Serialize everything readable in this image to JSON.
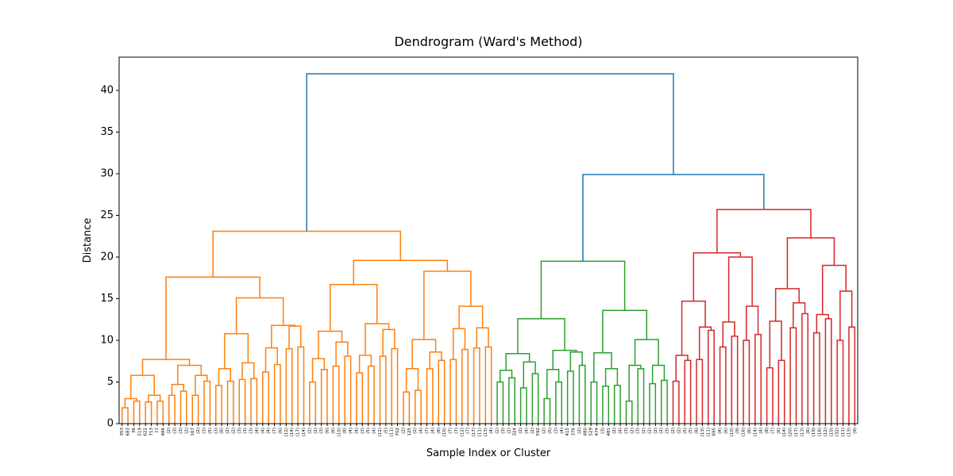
{
  "chart_data": {
    "type": "dendrogram",
    "title": "Dendrogram (Ward's Method)",
    "x_label": "Sample Index or Cluster",
    "y_label": "Distance",
    "ylim": [
      0,
      44
    ],
    "yticks": [
      0,
      5,
      10,
      15,
      20,
      25,
      30,
      35,
      40
    ],
    "color_threshold": 29.4,
    "palette": [
      "#ff7f0e",
      "#2ca02c",
      "#d62728"
    ],
    "above_threshold_color": "#1f77b4",
    "tree": [
      42.0,
      [
        23.1,
        [
          17.6,
          [
            7.7,
            [
              5.8,
              [
                3.0,
                [
                  1.9,
                  "353",
                  "683"
                ],
                [
                  2.7,
                  "36",
                  "519"
                ]
              ],
              [
                3.4,
                [
                  2.6,
                  "622",
                  "713"
                ],
                [
                  2.7,
                  "77",
                  "486"
                ]
              ]
            ],
            [
              7.0,
              [
                4.7,
                [
                  3.4,
                  "(2)",
                  "(3)"
                ],
                [
                  3.9,
                  "(3)",
                  "(2)"
                ]
              ],
              [
                5.8,
                [
                  3.4,
                  "167",
                  "(2)"
                ],
                [
                  5.1,
                  "(3)",
                  "(5)"
                ]
              ]
            ]
          ],
          [
            15.1,
            [
              10.8,
              [
                6.6,
                [
                  4.6,
                  "(3)",
                  "(6)"
                ],
                [
                  5.1,
                  "(2)",
                  "(2)"
                ]
              ],
              [
                7.3,
                [
                  5.3,
                  "(3)",
                  "(3)"
                ],
                [
                  5.4,
                  "(3)",
                  "(4)"
                ]
              ]
            ],
            [
              11.8,
              [
                9.1,
                [
                  6.2,
                  "(4)",
                  "(4)"
                ],
                [
                  7.1,
                  "(7)",
                  "(6)"
                ]
              ],
              [
                11.7,
                [
                  9.0,
                  "(12)",
                  "(14)"
                ],
                [
                  9.2,
                  "(17)",
                  "(14)"
                ]
              ]
            ]
          ]
        ],
        [
          19.6,
          [
            16.7,
            [
              11.1,
              [
                7.8,
                [
                  5.0,
                  "(2)",
                  "(2)"
                ],
                [
                  6.5,
                  "(3)",
                  "(6)"
                ]
              ],
              [
                9.8,
                [
                  6.9,
                  "(6)",
                  "(10)"
                ],
                [
                  8.1,
                  "(8)",
                  "(4)"
                ]
              ]
            ],
            [
              12.0,
              [
                8.2,
                [
                  6.1,
                  "(4)",
                  "(3)"
                ],
                [
                  6.9,
                  "(5)",
                  "(4)"
                ]
              ],
              [
                11.3,
                [
                  8.1,
                  "(12)",
                  "(5)"
                ],
                [
                  9.0,
                  "(11)",
                  "702"
                ]
              ]
            ]
          ],
          [
            18.3,
            [
              10.1,
              [
                6.6,
                [
                  3.8,
                  "(2)",
                  "125"
                ],
                [
                  4.0,
                  "(2)",
                  "(4)"
                ]
              ],
              [
                8.6,
                [
                  6.6,
                  "(7)",
                  "(4)"
                ],
                [
                  7.6,
                  "(8)",
                  "(10)"
                ]
              ]
            ],
            [
              14.1,
              [
                11.4,
                [
                  7.7,
                  "(7)",
                  "(7)"
                ],
                [
                  8.9,
                  "(12)",
                  "(7)"
                ]
              ],
              [
                11.5,
                [
                  9.1,
                  "(17)",
                  "(11)"
                ],
                [
                  9.2,
                  "(13)",
                  "(4)"
                ]
              ]
            ]
          ]
        ]
      ],
      [
        29.9,
        [
          19.5,
          [
            12.6,
            [
              8.4,
              [
                6.4,
                [
                  5.0,
                  "(2)",
                  "(3)"
                ],
                [
                  5.5,
                  "(2)",
                  "324"
                ]
              ],
              [
                7.4,
                [
                  4.3,
                  "(2)",
                  "(4)"
                ],
                [
                  6.0,
                  "(2)",
                  "592"
                ]
              ]
            ],
            [
              8.8,
              [
                6.5,
                [
                  3.0,
                  "(2)",
                  "(5)"
                ],
                [
                  5.0,
                  "(3)",
                  "(4)"
                ]
              ],
              [
                8.6,
                [
                  6.3,
                  "415",
                  "376"
                ],
                [
                  7.0,
                  "(2)",
                  "480"
                ]
              ]
            ]
          ],
          [
            13.6,
            [
              8.5,
              [
                5.0,
                "529",
                "474"
              ],
              [
                6.6,
                [
                  4.5,
                  "(3)",
                  "481"
                ],
                [
                  4.6,
                  "(2)",
                  "(4)"
                ]
              ]
            ],
            [
              10.1,
              [
                7.0,
                [
                  2.7,
                  "(3)",
                  "(2)"
                ],
                [
                  6.6,
                  "(3)",
                  "(2)"
                ]
              ],
              [
                7.0,
                [
                  4.8,
                  "(2)",
                  "(2)"
                ],
                [
                  5.2,
                  "(2)",
                  "(3)"
                ]
              ]
            ]
          ]
        ],
        [
          25.7,
          [
            20.5,
            [
              14.7,
              [
                8.2,
                [
                  5.1,
                  "(2)",
                  "(2)"
                ],
                [
                  7.6,
                  "(5)",
                  "(5)"
                ]
              ],
              [
                11.6,
                [
                  7.7,
                  "(6)",
                  "(13)"
                ],
                [
                  11.2,
                  "(11)",
                  "695"
                ]
              ]
            ],
            [
              20.0,
              [
                12.2,
                [
                  9.2,
                  "(4)",
                  "(6)"
                ],
                [
                  10.5,
                  "(10)",
                  "(9)"
                ]
              ],
              [
                14.1,
                [
                  10.0,
                  "(16)",
                  "(6)"
                ],
                [
                  10.7,
                  "(14)",
                  "(4)"
                ]
              ]
            ]
          ],
          [
            22.3,
            [
              16.2,
              [
                12.3,
                [
                  6.7,
                  "(8)",
                  "(7)"
                ],
                [
                  7.6,
                  "(6)",
                  "(14)"
                ]
              ],
              [
                14.5,
                [
                  11.5,
                  "(20)",
                  "(17)"
                ],
                [
                  13.2,
                  "(13)",
                  "(6)"
                ]
              ]
            ],
            [
              19.0,
              [
                13.1,
                [
                  10.9,
                  "(19)",
                  "(16)"
                ],
                [
                  12.6,
                  "(12)",
                  "(10)"
                ]
              ],
              [
                15.9,
                [
                  10.0,
                  "(32)",
                  "(11)"
                ],
                [
                  11.6,
                  "(13)",
                  "(9)"
                ]
              ]
            ]
          ]
        ]
      ]
    ]
  }
}
